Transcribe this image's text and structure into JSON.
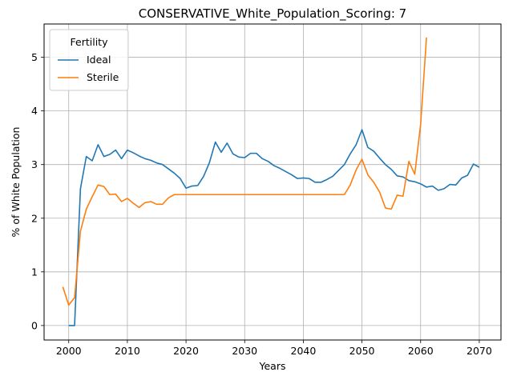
{
  "chart_data": {
    "type": "line",
    "title": "CONSERVATIVE_White_Population_Scoring: 7",
    "xlabel": "Years",
    "ylabel": "% of White Population",
    "xlim": [
      1995.8,
      2073.7
    ],
    "ylim": [
      -0.27,
      5.62
    ],
    "xticks": [
      2000,
      2010,
      2020,
      2030,
      2040,
      2050,
      2060,
      2070
    ],
    "yticks": [
      0,
      1,
      2,
      3,
      4,
      5
    ],
    "grid": true,
    "legend": {
      "title": "Fertility",
      "position": "top-left"
    },
    "series": [
      {
        "name": "Ideal",
        "color": "#1f77b4",
        "points": [
          [
            2000,
            0.0
          ],
          [
            2001,
            0.0
          ],
          [
            2002,
            2.55
          ],
          [
            2003,
            3.15
          ],
          [
            2004,
            3.07
          ],
          [
            2005,
            3.37
          ],
          [
            2006,
            3.15
          ],
          [
            2007,
            3.19
          ],
          [
            2008,
            3.27
          ],
          [
            2009,
            3.11
          ],
          [
            2010,
            3.27
          ],
          [
            2011,
            3.22
          ],
          [
            2012,
            3.16
          ],
          [
            2013,
            3.11
          ],
          [
            2014,
            3.08
          ],
          [
            2015,
            3.03
          ],
          [
            2016,
            3.0
          ],
          [
            2017,
            2.92
          ],
          [
            2018,
            2.84
          ],
          [
            2019,
            2.74
          ],
          [
            2020,
            2.56
          ],
          [
            2021,
            2.6
          ],
          [
            2022,
            2.61
          ],
          [
            2023,
            2.78
          ],
          [
            2024,
            3.04
          ],
          [
            2025,
            3.42
          ],
          [
            2026,
            3.23
          ],
          [
            2027,
            3.4
          ],
          [
            2028,
            3.2
          ],
          [
            2029,
            3.14
          ],
          [
            2030,
            3.13
          ],
          [
            2031,
            3.21
          ],
          [
            2032,
            3.21
          ],
          [
            2033,
            3.11
          ],
          [
            2034,
            3.06
          ],
          [
            2035,
            2.98
          ],
          [
            2036,
            2.93
          ],
          [
            2037,
            2.87
          ],
          [
            2038,
            2.81
          ],
          [
            2039,
            2.74
          ],
          [
            2040,
            2.75
          ],
          [
            2041,
            2.74
          ],
          [
            2042,
            2.67
          ],
          [
            2043,
            2.67
          ],
          [
            2044,
            2.72
          ],
          [
            2045,
            2.78
          ],
          [
            2046,
            2.89
          ],
          [
            2047,
            3.0
          ],
          [
            2048,
            3.2
          ],
          [
            2049,
            3.37
          ],
          [
            2050,
            3.65
          ],
          [
            2051,
            3.32
          ],
          [
            2052,
            3.25
          ],
          [
            2053,
            3.12
          ],
          [
            2054,
            3.0
          ],
          [
            2055,
            2.91
          ],
          [
            2056,
            2.79
          ],
          [
            2057,
            2.77
          ],
          [
            2058,
            2.7
          ],
          [
            2059,
            2.68
          ],
          [
            2060,
            2.64
          ],
          [
            2061,
            2.58
          ],
          [
            2062,
            2.6
          ],
          [
            2063,
            2.52
          ],
          [
            2064,
            2.55
          ],
          [
            2065,
            2.63
          ],
          [
            2066,
            2.62
          ],
          [
            2067,
            2.75
          ],
          [
            2068,
            2.8
          ],
          [
            2069,
            3.01
          ],
          [
            2070,
            2.95
          ]
        ]
      },
      {
        "name": "Sterile",
        "color": "#ff7f0e",
        "points": [
          [
            1999,
            0.72
          ],
          [
            2000,
            0.38
          ],
          [
            2001,
            0.52
          ],
          [
            2002,
            1.76
          ],
          [
            2003,
            2.17
          ],
          [
            2004,
            2.4
          ],
          [
            2005,
            2.62
          ],
          [
            2006,
            2.59
          ],
          [
            2007,
            2.44
          ],
          [
            2008,
            2.45
          ],
          [
            2009,
            2.31
          ],
          [
            2010,
            2.37
          ],
          [
            2011,
            2.28
          ],
          [
            2012,
            2.2
          ],
          [
            2013,
            2.29
          ],
          [
            2014,
            2.31
          ],
          [
            2015,
            2.26
          ],
          [
            2016,
            2.26
          ],
          [
            2017,
            2.38
          ],
          [
            2018,
            2.44
          ],
          [
            2019,
            2.44
          ],
          [
            2020,
            2.44
          ],
          [
            2021,
            2.44
          ],
          [
            2022,
            2.44
          ],
          [
            2023,
            2.44
          ],
          [
            2024,
            2.44
          ],
          [
            2025,
            2.44
          ],
          [
            2026,
            2.44
          ],
          [
            2027,
            2.44
          ],
          [
            2028,
            2.44
          ],
          [
            2029,
            2.44
          ],
          [
            2030,
            2.44
          ],
          [
            2031,
            2.44
          ],
          [
            2032,
            2.44
          ],
          [
            2033,
            2.44
          ],
          [
            2034,
            2.44
          ],
          [
            2035,
            2.44
          ],
          [
            2036,
            2.44
          ],
          [
            2037,
            2.44
          ],
          [
            2038,
            2.44
          ],
          [
            2039,
            2.44
          ],
          [
            2040,
            2.44
          ],
          [
            2041,
            2.44
          ],
          [
            2042,
            2.44
          ],
          [
            2043,
            2.44
          ],
          [
            2044,
            2.44
          ],
          [
            2045,
            2.44
          ],
          [
            2046,
            2.44
          ],
          [
            2047,
            2.44
          ],
          [
            2048,
            2.62
          ],
          [
            2049,
            2.9
          ],
          [
            2050,
            3.1
          ],
          [
            2051,
            2.81
          ],
          [
            2052,
            2.67
          ],
          [
            2053,
            2.49
          ],
          [
            2054,
            2.19
          ],
          [
            2055,
            2.17
          ],
          [
            2056,
            2.43
          ],
          [
            2057,
            2.41
          ],
          [
            2058,
            3.06
          ],
          [
            2059,
            2.82
          ],
          [
            2060,
            3.75
          ],
          [
            2061,
            5.37
          ]
        ]
      }
    ]
  }
}
